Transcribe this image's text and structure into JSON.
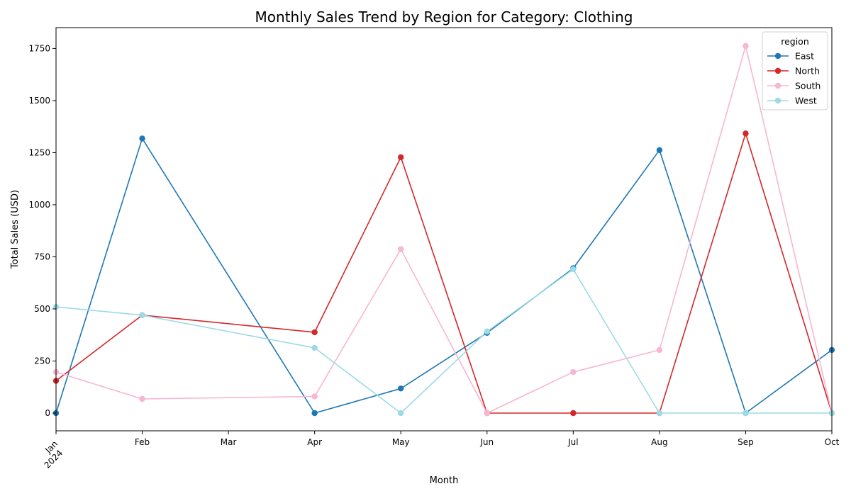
{
  "chart_data": {
    "type": "line",
    "title": "Monthly Sales Trend by Region for Category: Clothing",
    "xlabel": "Month",
    "ylabel": "Total Sales (USD)",
    "x_tick_labels": [
      "Jan",
      "Feb",
      "Mar",
      "Apr",
      "May",
      "Jun",
      "Jul",
      "Aug",
      "Sep",
      "Oct"
    ],
    "x_year_label": "2024",
    "x_range": [
      0,
      9
    ],
    "ylim": [
      -85,
      1850
    ],
    "y_ticks": [
      0,
      250,
      500,
      750,
      1000,
      1250,
      1500,
      1750
    ],
    "grid": false,
    "legend": {
      "title": "region",
      "placement": "top-right"
    },
    "series": [
      {
        "name": "East",
        "color": "#1f77b4",
        "points": [
          [
            0,
            0
          ],
          [
            1,
            1318
          ],
          [
            3,
            0
          ],
          [
            4,
            118
          ],
          [
            5,
            385
          ],
          [
            6,
            695
          ],
          [
            7,
            1262
          ],
          [
            8,
            0
          ],
          [
            9,
            303
          ]
        ]
      },
      {
        "name": "North",
        "color": "#d62728",
        "points": [
          [
            0,
            155
          ],
          [
            1,
            470
          ],
          [
            3,
            388
          ],
          [
            4,
            1228
          ],
          [
            5,
            0
          ],
          [
            6,
            0
          ],
          [
            7,
            0
          ],
          [
            8,
            1342
          ],
          [
            9,
            0
          ]
        ]
      },
      {
        "name": "South",
        "color": "#f7b6d2",
        "points": [
          [
            0,
            197
          ],
          [
            1,
            68
          ],
          [
            3,
            80
          ],
          [
            4,
            787
          ],
          [
            5,
            0
          ],
          [
            6,
            197
          ],
          [
            7,
            303
          ],
          [
            8,
            1762
          ],
          [
            9,
            0
          ]
        ]
      },
      {
        "name": "West",
        "color": "#9edae5",
        "points": [
          [
            0,
            510
          ],
          [
            1,
            470
          ],
          [
            3,
            313
          ],
          [
            4,
            0
          ],
          [
            5,
            392
          ],
          [
            6,
            690
          ],
          [
            7,
            0
          ],
          [
            8,
            0
          ],
          [
            9,
            0
          ]
        ]
      }
    ]
  }
}
